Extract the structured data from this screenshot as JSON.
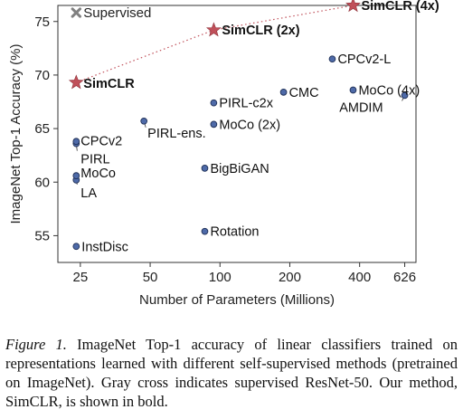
{
  "chart_data": {
    "type": "scatter",
    "xlabel": "Number of Parameters (Millions)",
    "ylabel": "ImageNet Top-1 Accuracy (%)",
    "x_scale": "log",
    "xlim": [
      20,
      700
    ],
    "ylim": [
      52.5,
      76.5
    ],
    "x_ticks": [
      25,
      50,
      100,
      200,
      400,
      626
    ],
    "y_ticks": [
      55,
      60,
      65,
      70,
      75
    ],
    "grid": false,
    "legend": {
      "label": "Supervised",
      "position": "top-left"
    },
    "colors": {
      "point": "#4e6aa8",
      "point_edge": "#1f2f55",
      "simclr": "#c0505a",
      "supervised": "#808080",
      "link": "#c0505a"
    },
    "points": [
      {
        "label": "InstDisc",
        "x": 24,
        "y": 54.0
      },
      {
        "label": "Rotation",
        "x": 86,
        "y": 55.4
      },
      {
        "label": "BigBiGAN",
        "x": 86,
        "y": 61.3
      },
      {
        "label": "LA",
        "x": 24,
        "y": 60.2
      },
      {
        "label": "MoCo",
        "x": 24,
        "y": 60.6
      },
      {
        "label": "PIRL",
        "x": 24,
        "y": 63.6
      },
      {
        "label": "CPCv2",
        "x": 24,
        "y": 63.8
      },
      {
        "label": "PIRL-ens.",
        "x": 47,
        "y": 65.7
      },
      {
        "label": "MoCo (2x)",
        "x": 94,
        "y": 65.4
      },
      {
        "label": "PIRL-c2x",
        "x": 94,
        "y": 67.4
      },
      {
        "label": "CMC",
        "x": 188,
        "y": 68.4
      },
      {
        "label": "CPCv2-L",
        "x": 305,
        "y": 71.5
      },
      {
        "label": "MoCo (4x)",
        "x": 375,
        "y": 68.6
      },
      {
        "label": "AMDIM",
        "x": 626,
        "y": 68.1
      }
    ],
    "simclr": [
      {
        "label": "SimCLR",
        "x": 24,
        "y": 69.3
      },
      {
        "label": "SimCLR (2x)",
        "x": 94,
        "y": 74.2
      },
      {
        "label": "SimCLR (4x)",
        "x": 375,
        "y": 76.5
      }
    ],
    "supervised": [
      {
        "x": 24,
        "y": 76.5
      }
    ]
  },
  "caption": {
    "figure_label": "Figure 1.",
    "text": " ImageNet Top-1 accuracy of linear classifiers trained on representations learned with different self-supervised methods (pretrained on ImageNet). Gray cross indicates supervised ResNet-50. Our method, SimCLR, is shown in bold."
  }
}
